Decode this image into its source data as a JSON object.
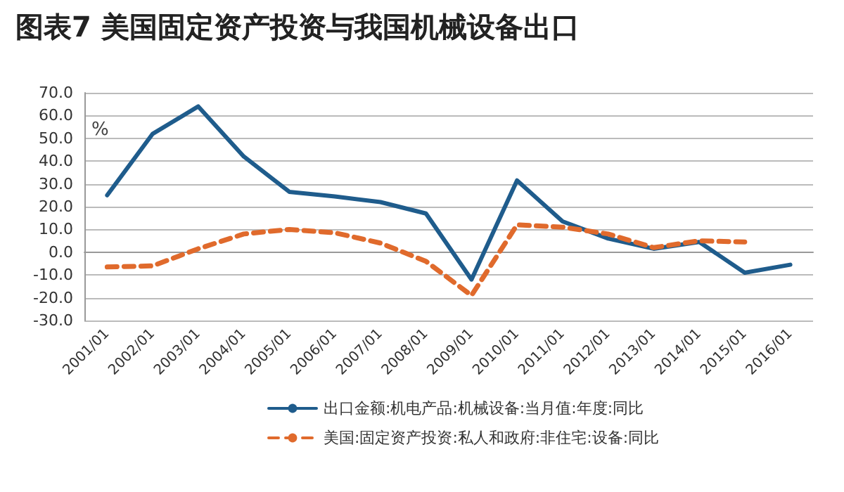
{
  "chart_data": {
    "type": "line",
    "title": "图表7 美国固定资产投资与我国机械设备出口",
    "ylabel": "%",
    "categories": [
      "2001/01",
      "2002/01",
      "2003/01",
      "2004/01",
      "2005/01",
      "2006/01",
      "2007/01",
      "2008/01",
      "2009/01",
      "2010/01",
      "2011/01",
      "2012/01",
      "2013/01",
      "2014/01",
      "2015/01",
      "2016/01"
    ],
    "series": [
      {
        "name": "出口金额:机电产品:机械设备:当月值:年度:同比",
        "color": "#1f5c8c",
        "line_style": "solid",
        "values": [
          25,
          52,
          64,
          42,
          26.5,
          24.5,
          22,
          17,
          -12,
          31.5,
          13.5,
          6,
          1.5,
          4.5,
          -9,
          -5.5
        ]
      },
      {
        "name": "美国:固定资产投资:私人和政府:非住宅:设备:同比",
        "color": "#e06a2c",
        "line_style": "dashed",
        "values": [
          -6.5,
          -6,
          1.5,
          8,
          10,
          8.5,
          4,
          -4,
          -19,
          12,
          11,
          8,
          2,
          5,
          4.5,
          null
        ]
      }
    ],
    "ylim": [
      -30,
      70
    ],
    "yticks": [
      {
        "value": -30,
        "label": "-30.0"
      },
      {
        "value": -20,
        "label": "-20.0"
      },
      {
        "value": -10,
        "label": "-10.0"
      },
      {
        "value": 0,
        "label": "0.0"
      },
      {
        "value": 10,
        "label": "10.0"
      },
      {
        "value": 20,
        "label": "20.0"
      },
      {
        "value": 30,
        "label": "30.0"
      },
      {
        "value": 40,
        "label": "40.0"
      },
      {
        "value": 50,
        "label": "50.0"
      },
      {
        "value": 60,
        "label": "60.0"
      },
      {
        "value": 70,
        "label": "70.0"
      }
    ],
    "grid": "y",
    "legend": "bottom",
    "marker": "none"
  }
}
